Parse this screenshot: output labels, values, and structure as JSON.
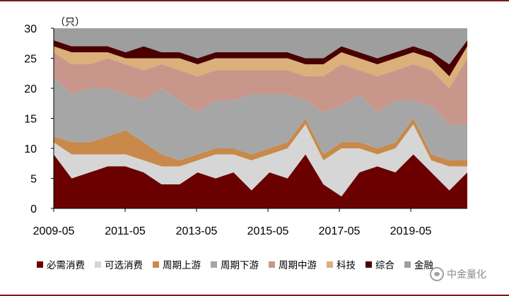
{
  "chart_data": {
    "type": "area",
    "stacked": true,
    "unit_label": "（只）",
    "ylim": [
      0,
      30
    ],
    "y_ticks": [
      "0",
      "5",
      "10",
      "15",
      "20",
      "25",
      "30"
    ],
    "x_ticks": [
      "2009-05",
      "2011-05",
      "2013-05",
      "2015-05",
      "2017-05",
      "2019-05"
    ],
    "x_start": "2009-05",
    "x_end": "2020-12",
    "x_points": 24,
    "series": [
      {
        "name": "必需消费",
        "color": "#6b0000",
        "values": [
          9,
          5,
          6,
          7,
          7,
          6,
          4,
          4,
          6,
          5,
          6,
          3,
          6,
          5,
          9,
          4,
          2,
          6,
          7,
          6,
          9,
          6,
          3,
          6
        ]
      },
      {
        "name": "可选消费",
        "color": "#d6d6d6",
        "values": [
          2,
          4,
          3,
          2,
          2,
          2,
          3,
          3,
          2,
          4,
          3,
          5,
          3,
          5,
          5,
          4,
          8,
          4,
          2,
          4,
          5,
          2,
          4,
          1
        ]
      },
      {
        "name": "周期上游",
        "color": "#c8894a",
        "values": [
          1,
          2,
          2,
          3,
          4,
          3,
          2,
          1,
          1,
          1,
          1,
          1,
          1,
          1,
          1,
          1,
          1,
          1,
          1,
          1,
          1,
          1,
          1,
          1
        ]
      },
      {
        "name": "周期下游",
        "color": "#a6a6a6",
        "values": [
          10,
          8,
          9,
          8,
          6,
          7,
          11,
          10,
          7,
          8,
          8,
          10,
          9,
          8,
          3,
          7,
          6,
          8,
          6,
          7,
          3,
          8,
          6,
          6
        ]
      },
      {
        "name": "周期中游",
        "color": "#c9968b",
        "values": [
          4,
          5,
          4,
          5,
          5,
          5,
          4,
          5,
          6,
          5,
          5,
          4,
          4,
          4,
          4,
          6,
          7,
          4,
          6,
          5,
          6,
          6,
          6,
          11
        ]
      },
      {
        "name": "科技",
        "color": "#dbb07a",
        "values": [
          1,
          2,
          2,
          1,
          1,
          2,
          1,
          2,
          2,
          2,
          2,
          2,
          2,
          2,
          2,
          2,
          2,
          2,
          2,
          2,
          2,
          2,
          2,
          2
        ]
      },
      {
        "name": "综合",
        "color": "#4a0000",
        "values": [
          1,
          1,
          1,
          1,
          1,
          2,
          1,
          1,
          1,
          1,
          1,
          1,
          1,
          1,
          1,
          1,
          1,
          1,
          1,
          1,
          1,
          1,
          2,
          1
        ]
      },
      {
        "name": "金融",
        "color": "#9e9e9e",
        "values": [
          2,
          3,
          3,
          3,
          4,
          3,
          4,
          4,
          5,
          4,
          4,
          4,
          4,
          4,
          5,
          5,
          3,
          4,
          5,
          4,
          3,
          4,
          6,
          2
        ]
      }
    ]
  },
  "watermark": {
    "text": "中金量化"
  }
}
